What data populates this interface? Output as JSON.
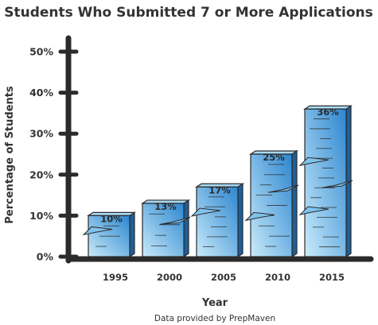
{
  "chart_data": {
    "type": "bar",
    "title": "Students Who Submitted 7 or More Applications",
    "xlabel": "Year",
    "ylabel": "Percentage of Students",
    "categories": [
      "1995",
      "2000",
      "2005",
      "2010",
      "2015"
    ],
    "values": [
      10,
      13,
      17,
      25,
      36
    ],
    "value_labels": [
      "10%",
      "13%",
      "17%",
      "25%",
      "36%"
    ],
    "ylim": [
      0,
      50
    ],
    "yticks": [
      "0%",
      "10%",
      "20%",
      "30%",
      "40%",
      "50%"
    ],
    "grid": false,
    "source": "Data provided by PrepMaven",
    "colors": {
      "bar_light": "#c9ebfa",
      "bar_dark": "#2d86d0",
      "axis": "#2b2b2b",
      "outline": "#2b2b2b"
    }
  }
}
